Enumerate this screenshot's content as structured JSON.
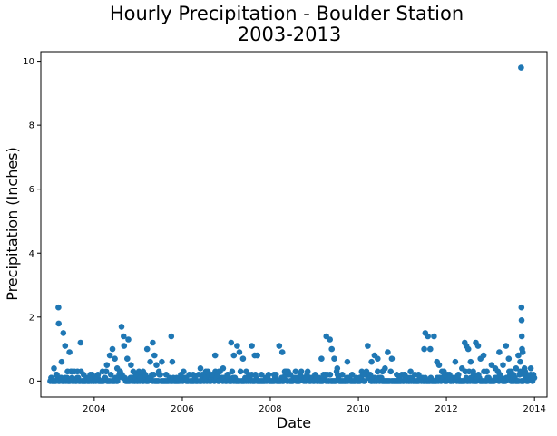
{
  "chart_data": {
    "type": "scatter",
    "title": "Hourly Precipitation - Boulder Station",
    "subtitle": "2003-2013",
    "xlabel": "Date",
    "ylabel": "Precipitation (Inches)",
    "xlim": [
      "2002-10-15",
      "2014-04-15"
    ],
    "ylim": [
      -0.5,
      10.3
    ],
    "x_ticks": [
      {
        "date": "2004-01-01",
        "label": "2004"
      },
      {
        "date": "2006-01-01",
        "label": "2006"
      },
      {
        "date": "2008-01-01",
        "label": "2008"
      },
      {
        "date": "2010-01-01",
        "label": "2010"
      },
      {
        "date": "2012-01-01",
        "label": "2012"
      },
      {
        "date": "2014-01-01",
        "label": "2014"
      }
    ],
    "y_ticks": [
      {
        "value": 0,
        "label": "0"
      },
      {
        "value": 2,
        "label": "2"
      },
      {
        "value": 4,
        "label": "4"
      },
      {
        "value": 6,
        "label": "6"
      },
      {
        "value": 8,
        "label": "8"
      },
      {
        "value": 10,
        "label": "10"
      }
    ],
    "grid": false,
    "marker_color": "#1f77b4",
    "series": [
      {
        "points": [
          {
            "x": "2003-01-10",
            "y": 0.1
          },
          {
            "x": "2003-02-01",
            "y": 0.4
          },
          {
            "x": "2003-02-20",
            "y": 0.2
          },
          {
            "x": "2003-03-10",
            "y": 2.3
          },
          {
            "x": "2003-03-12",
            "y": 1.8
          },
          {
            "x": "2003-04-05",
            "y": 0.6
          },
          {
            "x": "2003-04-20",
            "y": 1.5
          },
          {
            "x": "2003-05-05",
            "y": 1.1
          },
          {
            "x": "2003-05-25",
            "y": 0.3
          },
          {
            "x": "2003-06-10",
            "y": 0.9
          },
          {
            "x": "2003-07-01",
            "y": 0.1
          },
          {
            "x": "2003-08-15",
            "y": 0.3
          },
          {
            "x": "2003-09-10",
            "y": 1.2
          },
          {
            "x": "2003-10-05",
            "y": 0.2
          },
          {
            "x": "2003-11-20",
            "y": 0.1
          },
          {
            "x": "2004-02-01",
            "y": 0.2
          },
          {
            "x": "2004-03-10",
            "y": 0.3
          },
          {
            "x": "2004-04-15",
            "y": 0.5
          },
          {
            "x": "2004-05-10",
            "y": 0.8
          },
          {
            "x": "2004-06-01",
            "y": 1.0
          },
          {
            "x": "2004-06-20",
            "y": 0.7
          },
          {
            "x": "2004-07-10",
            "y": 0.4
          },
          {
            "x": "2004-08-01",
            "y": 0.3
          },
          {
            "x": "2004-08-15",
            "y": 1.7
          },
          {
            "x": "2004-09-01",
            "y": 1.4
          },
          {
            "x": "2004-09-05",
            "y": 1.1
          },
          {
            "x": "2004-10-01",
            "y": 0.7
          },
          {
            "x": "2004-10-10",
            "y": 1.3
          },
          {
            "x": "2004-11-01",
            "y": 0.5
          },
          {
            "x": "2004-12-10",
            "y": 0.2
          },
          {
            "x": "2005-01-15",
            "y": 0.1
          },
          {
            "x": "2005-02-10",
            "y": 0.3
          },
          {
            "x": "2005-03-15",
            "y": 1.0
          },
          {
            "x": "2005-04-10",
            "y": 0.6
          },
          {
            "x": "2005-05-01",
            "y": 1.2
          },
          {
            "x": "2005-05-15",
            "y": 0.8
          },
          {
            "x": "2005-06-01",
            "y": 0.5
          },
          {
            "x": "2005-06-20",
            "y": 0.3
          },
          {
            "x": "2005-07-15",
            "y": 0.6
          },
          {
            "x": "2005-08-20",
            "y": 0.2
          },
          {
            "x": "2005-10-01",
            "y": 1.4
          },
          {
            "x": "2005-10-10",
            "y": 0.6
          },
          {
            "x": "2005-11-15",
            "y": 0.1
          },
          {
            "x": "2005-12-20",
            "y": 0.2
          },
          {
            "x": "2006-02-01",
            "y": 0.1
          },
          {
            "x": "2006-04-01",
            "y": 0.2
          },
          {
            "x": "2006-06-01",
            "y": 0.4
          },
          {
            "x": "2006-07-15",
            "y": 0.3
          },
          {
            "x": "2006-09-01",
            "y": 0.2
          },
          {
            "x": "2006-10-01",
            "y": 0.8
          },
          {
            "x": "2006-11-01",
            "y": 0.3
          },
          {
            "x": "2006-12-05",
            "y": 0.4
          },
          {
            "x": "2007-01-15",
            "y": 0.2
          },
          {
            "x": "2007-02-10",
            "y": 1.2
          },
          {
            "x": "2007-03-05",
            "y": 0.8
          },
          {
            "x": "2007-04-01",
            "y": 1.1
          },
          {
            "x": "2007-04-20",
            "y": 0.9
          },
          {
            "x": "2007-05-20",
            "y": 0.7
          },
          {
            "x": "2007-06-15",
            "y": 0.3
          },
          {
            "x": "2007-08-01",
            "y": 1.1
          },
          {
            "x": "2007-08-25",
            "y": 0.8
          },
          {
            "x": "2007-09-15",
            "y": 0.8
          },
          {
            "x": "2007-10-20",
            "y": 0.2
          },
          {
            "x": "2007-12-10",
            "y": 0.1
          },
          {
            "x": "2008-02-01",
            "y": 0.2
          },
          {
            "x": "2008-03-15",
            "y": 1.1
          },
          {
            "x": "2008-04-10",
            "y": 0.9
          },
          {
            "x": "2008-05-01",
            "y": 0.3
          },
          {
            "x": "2008-06-15",
            "y": 0.2
          },
          {
            "x": "2008-08-01",
            "y": 0.1
          },
          {
            "x": "2008-09-15",
            "y": 0.3
          },
          {
            "x": "2008-11-01",
            "y": 0.2
          },
          {
            "x": "2009-01-20",
            "y": 0.1
          },
          {
            "x": "2009-03-01",
            "y": 0.7
          },
          {
            "x": "2009-04-10",
            "y": 1.4
          },
          {
            "x": "2009-05-10",
            "y": 1.3
          },
          {
            "x": "2009-05-25",
            "y": 1.0
          },
          {
            "x": "2009-06-15",
            "y": 0.7
          },
          {
            "x": "2009-07-10",
            "y": 0.4
          },
          {
            "x": "2009-08-20",
            "y": 0.2
          },
          {
            "x": "2009-10-01",
            "y": 0.6
          },
          {
            "x": "2009-11-10",
            "y": 0.2
          },
          {
            "x": "2010-01-10",
            "y": 0.1
          },
          {
            "x": "2010-02-15",
            "y": 0.2
          },
          {
            "x": "2010-03-20",
            "y": 1.1
          },
          {
            "x": "2010-04-20",
            "y": 0.6
          },
          {
            "x": "2010-05-15",
            "y": 0.8
          },
          {
            "x": "2010-06-10",
            "y": 0.7
          },
          {
            "x": "2010-07-20",
            "y": 0.3
          },
          {
            "x": "2010-08-10",
            "y": 0.4
          },
          {
            "x": "2010-09-01",
            "y": 0.9
          },
          {
            "x": "2010-10-05",
            "y": 0.7
          },
          {
            "x": "2010-11-15",
            "y": 0.2
          },
          {
            "x": "2010-12-10",
            "y": 0.1
          },
          {
            "x": "2011-01-15",
            "y": 0.2
          },
          {
            "x": "2011-03-10",
            "y": 0.3
          },
          {
            "x": "2011-05-15",
            "y": 0.2
          },
          {
            "x": "2011-07-01",
            "y": 1.0
          },
          {
            "x": "2011-07-10",
            "y": 1.5
          },
          {
            "x": "2011-08-01",
            "y": 1.4
          },
          {
            "x": "2011-08-20",
            "y": 1.0
          },
          {
            "x": "2011-09-20",
            "y": 1.4
          },
          {
            "x": "2011-10-15",
            "y": 0.6
          },
          {
            "x": "2011-11-01",
            "y": 0.5
          },
          {
            "x": "2011-12-15",
            "y": 0.2
          },
          {
            "x": "2012-02-01",
            "y": 0.1
          },
          {
            "x": "2012-03-15",
            "y": 0.6
          },
          {
            "x": "2012-04-10",
            "y": 0.2
          },
          {
            "x": "2012-05-10",
            "y": 0.4
          },
          {
            "x": "2012-06-01",
            "y": 1.2
          },
          {
            "x": "2012-06-15",
            "y": 1.1
          },
          {
            "x": "2012-07-01",
            "y": 1.0
          },
          {
            "x": "2012-07-20",
            "y": 0.6
          },
          {
            "x": "2012-08-10",
            "y": 0.3
          },
          {
            "x": "2012-09-01",
            "y": 1.2
          },
          {
            "x": "2012-09-20",
            "y": 1.1
          },
          {
            "x": "2012-10-10",
            "y": 0.7
          },
          {
            "x": "2012-11-05",
            "y": 0.8
          },
          {
            "x": "2012-12-01",
            "y": 0.3
          },
          {
            "x": "2013-01-10",
            "y": 0.5
          },
          {
            "x": "2013-02-10",
            "y": 0.4
          },
          {
            "x": "2013-03-15",
            "y": 0.9
          },
          {
            "x": "2013-04-15",
            "y": 0.5
          },
          {
            "x": "2013-05-10",
            "y": 1.1
          },
          {
            "x": "2013-06-01",
            "y": 0.7
          },
          {
            "x": "2013-06-20",
            "y": 0.3
          },
          {
            "x": "2013-07-10",
            "y": 0.2
          },
          {
            "x": "2013-08-01",
            "y": 0.4
          },
          {
            "x": "2013-08-20",
            "y": 0.8
          },
          {
            "x": "2013-09-05",
            "y": 0.6
          },
          {
            "x": "2013-09-12",
            "y": 9.8
          },
          {
            "x": "2013-09-15",
            "y": 2.3
          },
          {
            "x": "2013-09-16",
            "y": 1.9
          },
          {
            "x": "2013-09-18",
            "y": 1.4
          },
          {
            "x": "2013-09-20",
            "y": 1.0
          },
          {
            "x": "2013-09-25",
            "y": 0.9
          },
          {
            "x": "2013-10-10",
            "y": 0.4
          },
          {
            "x": "2013-11-01",
            "y": 0.2
          },
          {
            "x": "2013-12-01",
            "y": 0.4
          },
          {
            "x": "2013-12-20",
            "y": 0.1
          }
        ]
      }
    ]
  }
}
